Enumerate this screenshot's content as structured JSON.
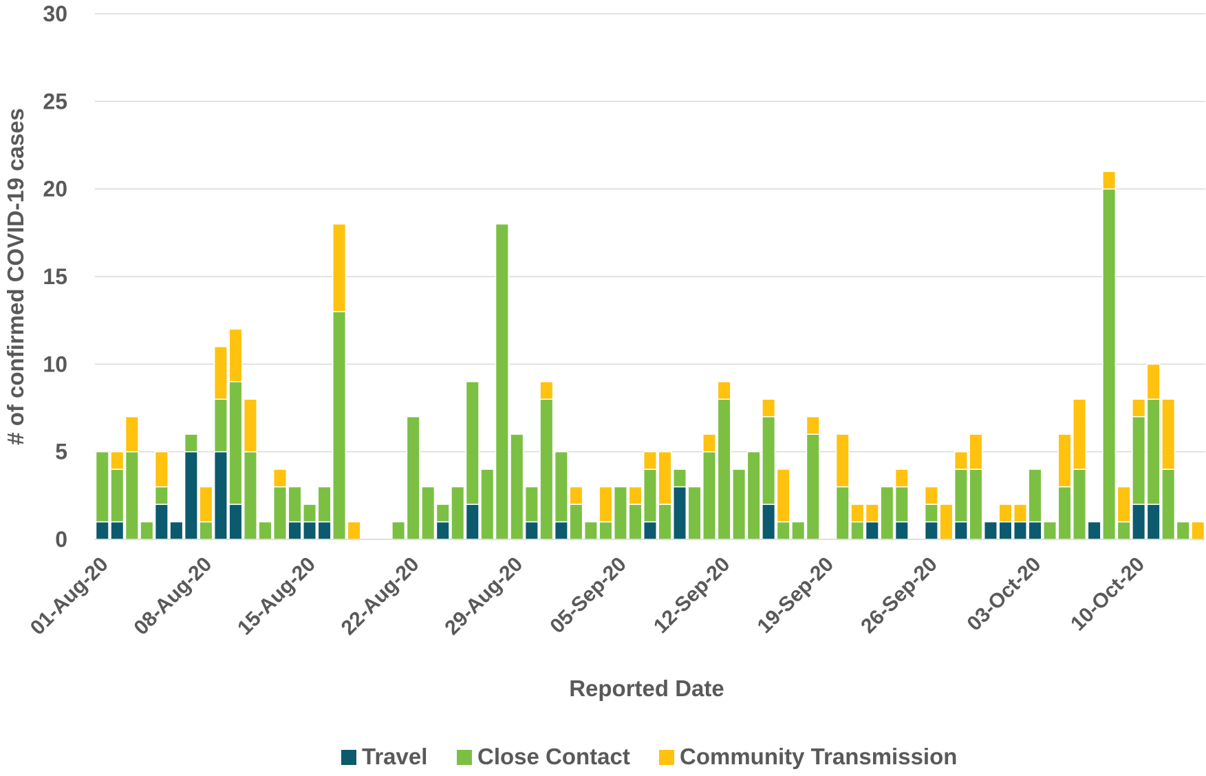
{
  "chart_data": {
    "type": "stacked_bar",
    "xlabel": "Reported Date",
    "ylabel": "# of confirmed COVID-19 cases",
    "categories": [
      "01-Aug-20",
      null,
      null,
      null,
      null,
      null,
      null,
      "08-Aug-20",
      null,
      null,
      null,
      null,
      null,
      null,
      "15-Aug-20",
      null,
      null,
      null,
      null,
      null,
      null,
      "22-Aug-20",
      null,
      null,
      null,
      null,
      null,
      null,
      "29-Aug-20",
      null,
      null,
      null,
      null,
      null,
      null,
      "05-Sep-20",
      null,
      null,
      null,
      null,
      null,
      null,
      "12-Sep-20",
      null,
      null,
      null,
      null,
      null,
      null,
      "19-Sep-20",
      null,
      null,
      null,
      null,
      null,
      null,
      "26-Sep-20",
      null,
      null,
      null,
      null,
      null,
      null,
      "03-Oct-20",
      null,
      null,
      null,
      null,
      null,
      null,
      "10-Oct-20",
      null,
      null,
      null,
      null
    ],
    "series": [
      {
        "name": "Travel",
        "color": "#0b5a6e",
        "values": [
          1,
          1,
          0,
          0,
          2,
          1,
          5,
          0,
          5,
          2,
          0,
          0,
          0,
          1,
          1,
          1,
          0,
          0,
          0,
          0,
          0,
          0,
          0,
          1,
          0,
          2,
          0,
          0,
          0,
          1,
          0,
          1,
          0,
          0,
          0,
          0,
          0,
          1,
          0,
          3,
          0,
          0,
          0,
          0,
          0,
          2,
          0,
          0,
          0,
          0,
          0,
          0,
          1,
          0,
          1,
          0,
          1,
          0,
          1,
          0,
          1,
          1,
          1,
          1,
          0,
          0,
          0,
          1,
          0,
          0,
          2,
          2,
          0,
          0,
          0
        ]
      },
      {
        "name": "Close Contact",
        "color": "#7bc043",
        "values": [
          4,
          3,
          5,
          1,
          1,
          0,
          1,
          1,
          3,
          7,
          5,
          1,
          3,
          2,
          1,
          2,
          13,
          0,
          0,
          0,
          1,
          7,
          3,
          1,
          3,
          7,
          4,
          18,
          6,
          2,
          8,
          4,
          2,
          1,
          1,
          3,
          2,
          3,
          2,
          1,
          3,
          5,
          8,
          4,
          5,
          5,
          1,
          1,
          6,
          0,
          3,
          1,
          0,
          3,
          2,
          0,
          1,
          0,
          3,
          4,
          0,
          0,
          0,
          3,
          1,
          3,
          4,
          0,
          20,
          1,
          5,
          6,
          4,
          1,
          0
        ]
      },
      {
        "name": "Community Transmission",
        "color": "#ffc20e",
        "values": [
          0,
          1,
          2,
          0,
          2,
          0,
          0,
          2,
          3,
          3,
          3,
          0,
          1,
          0,
          0,
          0,
          5,
          1,
          0,
          0,
          0,
          0,
          0,
          0,
          0,
          0,
          0,
          0,
          0,
          0,
          1,
          0,
          1,
          0,
          2,
          0,
          1,
          1,
          3,
          0,
          0,
          1,
          1,
          0,
          0,
          1,
          3,
          0,
          1,
          0,
          3,
          1,
          1,
          0,
          1,
          0,
          1,
          2,
          1,
          2,
          0,
          1,
          1,
          0,
          0,
          3,
          4,
          0,
          1,
          2,
          1,
          2,
          4,
          0,
          1
        ]
      }
    ],
    "ylim": [
      0,
      30
    ],
    "yticks": [
      0,
      5,
      10,
      15,
      20,
      25,
      30
    ],
    "grid": true,
    "legend": "bottom"
  }
}
